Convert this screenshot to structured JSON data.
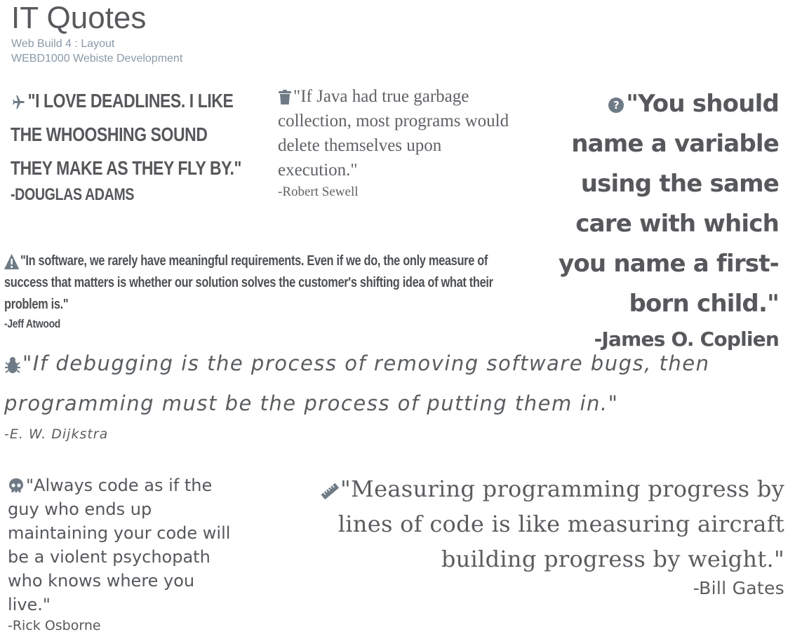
{
  "header": {
    "title": "IT Quotes",
    "course_line": "Web Build 4 : Layout",
    "course_code_line": "WEBD1000 Webiste Development"
  },
  "quotes": [
    {
      "icon": "airplane-icon",
      "text": "\"I LOVE DEADLINES. I LIKE THE WHOOSHING SOUND THEY MAKE AS THEY FLY BY.\"",
      "author": "-DOUGLAS ADAMS"
    },
    {
      "icon": "trash-icon",
      "text": "\"If Java had true garbage collection, most programs would delete themselves upon execution.\"",
      "author": "-Robert Sewell"
    },
    {
      "icon": "question-circle-icon",
      "text": "\"You should name a variable using the same care with which you name a first-born child.\"",
      "author": "-James O. Coplien"
    },
    {
      "icon": "warning-triangle-icon",
      "text": "\"In software, we rarely have meaningful requirements. Even if we do, the only measure of success that matters is whether our solution solves the customer's shifting idea of what their problem is.\"",
      "author": "-Jeff Atwood"
    },
    {
      "icon": "bug-icon",
      "text": "\"If debugging is the process of removing software bugs, then programming must be the process of putting them in.\"",
      "author": "-E. W. Dijkstra"
    },
    {
      "icon": "skull-icon",
      "text": "\"Always code as if the guy who ends up maintaining your code will be a violent psychopath who knows where you live.\"",
      "author": "-Rick Osborne"
    },
    {
      "icon": "ruler-icon",
      "text": "\"Measuring programming progress by lines of code is like measuring aircraft building progress by weight.\"",
      "author": "-Bill Gates"
    }
  ],
  "colors": {
    "text": "#55585c",
    "icon": "#6e7a85",
    "subtitle": "#8a9aa8"
  }
}
